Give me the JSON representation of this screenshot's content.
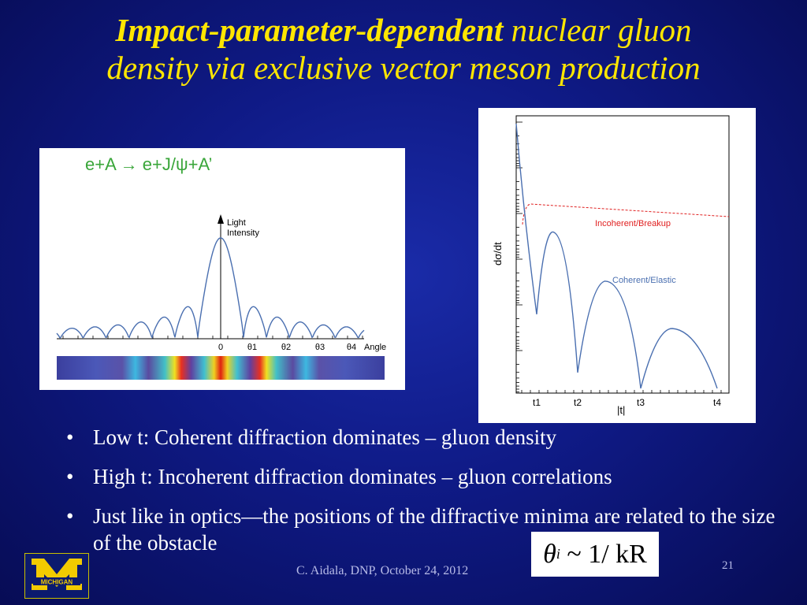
{
  "title": {
    "bold_part": "Impact-parameter-dependent",
    "rest_line1": "nuclear gluon",
    "line2": "density via exclusive vector meson production"
  },
  "bullets": [
    "Low t: Coherent diffraction dominates – gluon density",
    "High t: Incoherent diffraction dominates – gluon correlations",
    "Just like in optics—the positions of the diffractive minima are related to the size of the obstacle"
  ],
  "bullet_glyph": "•",
  "formula": {
    "lhs": "θ",
    "sub": "i",
    "rhs": "~ 1/ kR"
  },
  "footer": "C. Aidala, DNP, October 24, 2012",
  "page_number": "21",
  "logo": {
    "text": "MICHIGAN",
    "letter": "M"
  },
  "chart_data": [
    {
      "type": "line",
      "title": "e+A → e+J/ψ+A’",
      "ylabel": "Light Intensity",
      "xlabel": "Angle",
      "x_tick_labels": [
        "0",
        "θ1",
        "θ2",
        "θ3",
        "θ4"
      ],
      "colors": {
        "title": "#3aa63a",
        "curve": "#4a6fb0"
      }
    },
    {
      "type": "line",
      "xlabel": "|t|",
      "ylabel": "dσ/dt",
      "x_tick_labels": [
        "t1",
        "t2",
        "t3",
        "t4"
      ],
      "series": [
        {
          "name": "Incoherent/Breakup",
          "color": "#e02020"
        },
        {
          "name": "Coherent/Elastic",
          "color": "#4a6fb0"
        }
      ]
    }
  ]
}
